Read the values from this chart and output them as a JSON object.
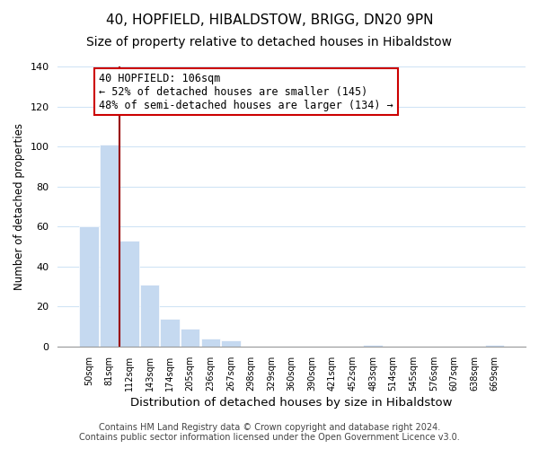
{
  "title": "40, HOPFIELD, HIBALDSTOW, BRIGG, DN20 9PN",
  "subtitle": "Size of property relative to detached houses in Hibaldstow",
  "bar_labels": [
    "50sqm",
    "81sqm",
    "112sqm",
    "143sqm",
    "174sqm",
    "205sqm",
    "236sqm",
    "267sqm",
    "298sqm",
    "329sqm",
    "360sqm",
    "390sqm",
    "421sqm",
    "452sqm",
    "483sqm",
    "514sqm",
    "545sqm",
    "576sqm",
    "607sqm",
    "638sqm",
    "669sqm"
  ],
  "bar_values": [
    60,
    101,
    53,
    31,
    14,
    9,
    4,
    3,
    0,
    0,
    0,
    0,
    0,
    0,
    1,
    0,
    0,
    0,
    0,
    0,
    1
  ],
  "bar_color": "#c5d9f0",
  "vline_position": 1.5,
  "vline_color": "#990000",
  "ylim": [
    0,
    140
  ],
  "ylabel": "Number of detached properties",
  "xlabel": "Distribution of detached houses by size in Hibaldstow",
  "annotation_title": "40 HOPFIELD: 106sqm",
  "annotation_line1": "← 52% of detached houses are smaller (145)",
  "annotation_line2": "48% of semi-detached houses are larger (134) →",
  "box_edge_color": "#cc0000",
  "footer_line1": "Contains HM Land Registry data © Crown copyright and database right 2024.",
  "footer_line2": "Contains public sector information licensed under the Open Government Licence v3.0.",
  "title_fontsize": 11,
  "subtitle_fontsize": 10,
  "xlabel_fontsize": 9.5,
  "ylabel_fontsize": 8.5,
  "tick_fontsize": 7,
  "footer_fontsize": 7,
  "annotation_fontsize": 8.5
}
